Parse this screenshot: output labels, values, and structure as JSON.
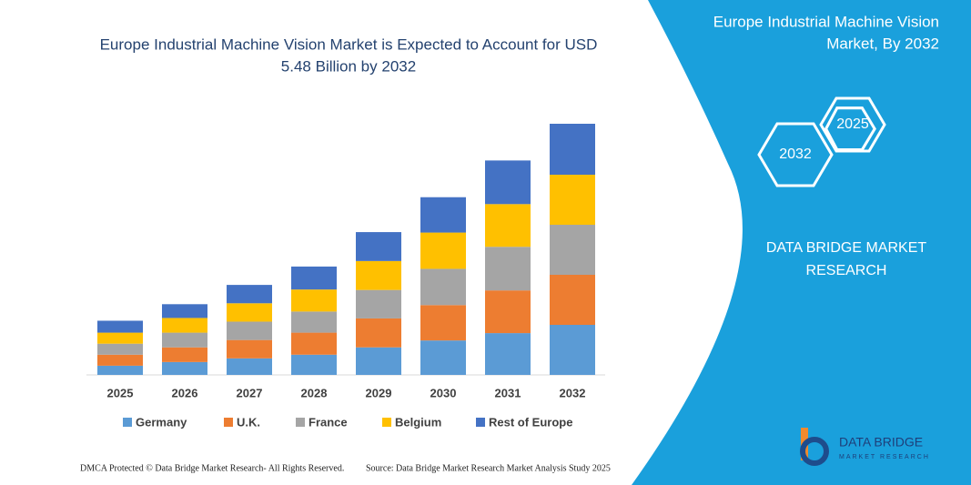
{
  "chart_data": {
    "type": "stacked-bar",
    "title": [
      "Europe Industrial Machine Vision Market is Expected to Account for USD",
      "5.48 Billion by 2032"
    ],
    "categories": [
      "2025",
      "2026",
      "2027",
      "2028",
      "2029",
      "2030",
      "2031",
      "2032"
    ],
    "series": [
      {
        "name": "Germany",
        "color": "#5b9bd5",
        "values": [
          0.2,
          0.28,
          0.36,
          0.44,
          0.6,
          0.75,
          0.91,
          1.09
        ]
      },
      {
        "name": "U.K.",
        "color": "#ed7d31",
        "values": [
          0.24,
          0.32,
          0.4,
          0.48,
          0.63,
          0.77,
          0.93,
          1.09
        ]
      },
      {
        "name": "France",
        "color": "#a5a5a5",
        "values": [
          0.24,
          0.32,
          0.4,
          0.46,
          0.62,
          0.79,
          0.95,
          1.09
        ]
      },
      {
        "name": "Belgium",
        "color": "#ffc000",
        "values": [
          0.24,
          0.32,
          0.4,
          0.48,
          0.63,
          0.79,
          0.93,
          1.09
        ]
      },
      {
        "name": "Rest of Europe",
        "color": "#4472c4",
        "values": [
          0.26,
          0.3,
          0.4,
          0.5,
          0.63,
          0.77,
          0.95,
          1.11
        ]
      }
    ],
    "legend": "bottom"
  },
  "panel": {
    "title": [
      "Europe Industrial Machine Vision",
      "Market, By 2032"
    ],
    "hexagons": [
      "2025",
      "2032"
    ],
    "brand": [
      "DATA BRIDGE MARKET",
      "RESEARCH"
    ],
    "logo": [
      "DATA BRIDGE",
      "MARKET RESEARCH"
    ]
  },
  "footer": {
    "copyright": "DMCA Protected © Data Bridge Market Research- All Rights Reserved.",
    "source": "Source: Data Bridge Market Research Market Analysis Study 2025"
  }
}
